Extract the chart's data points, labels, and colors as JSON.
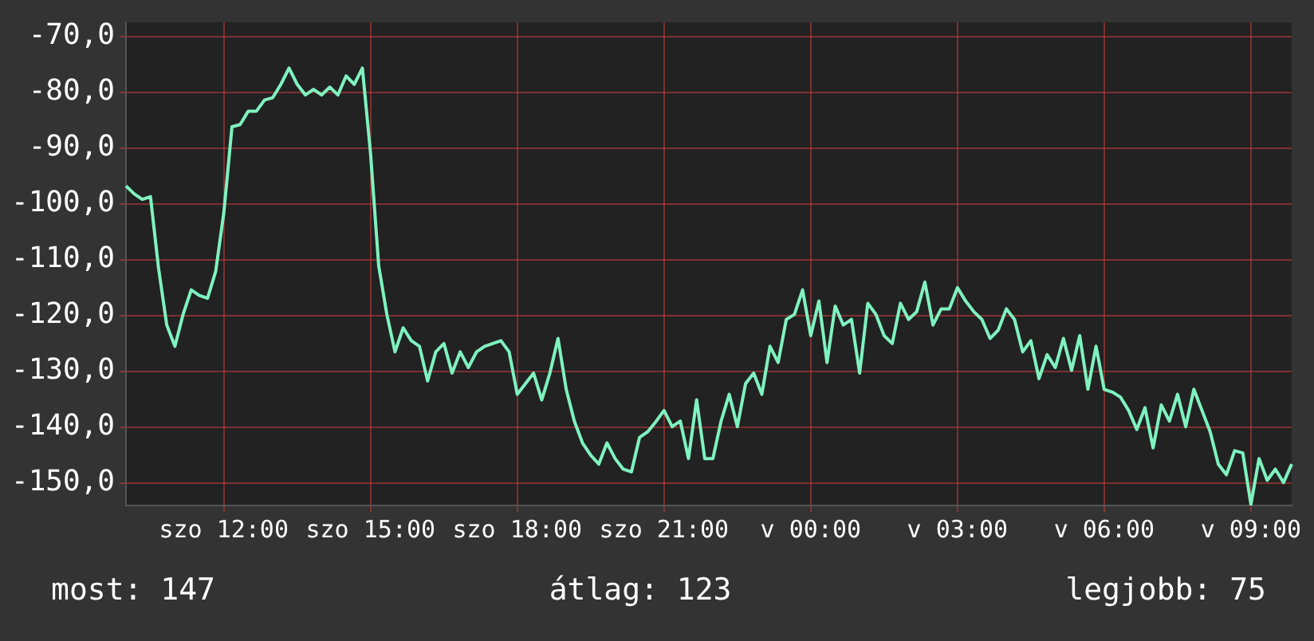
{
  "chart_data": {
    "type": "line",
    "categories": [
      null,
      null,
      null,
      null,
      null,
      null,
      null,
      null,
      null,
      null,
      null,
      null,
      "szo 12:00",
      null,
      null,
      null,
      null,
      null,
      null,
      null,
      null,
      null,
      null,
      null,
      null,
      null,
      null,
      null,
      null,
      null,
      "szo 15:00",
      null,
      null,
      null,
      null,
      null,
      null,
      null,
      null,
      null,
      null,
      null,
      null,
      null,
      null,
      null,
      null,
      null,
      "szo 18:00",
      null,
      null,
      null,
      null,
      null,
      null,
      null,
      null,
      null,
      null,
      null,
      null,
      null,
      null,
      null,
      null,
      null,
      "szo 21:00",
      null,
      null,
      null,
      null,
      null,
      null,
      null,
      null,
      null,
      null,
      null,
      null,
      null,
      null,
      null,
      null,
      null,
      "v 00:00",
      null,
      null,
      null,
      null,
      null,
      null,
      null,
      null,
      null,
      null,
      null,
      null,
      null,
      null,
      null,
      null,
      null,
      "v 03:00",
      null,
      null,
      null,
      null,
      null,
      null,
      null,
      null,
      null,
      null,
      null,
      null,
      null,
      null,
      null,
      null,
      null,
      "v 06:00",
      null,
      null,
      null,
      null,
      null,
      null,
      null,
      null,
      null,
      null,
      null,
      null,
      null,
      null,
      null,
      null,
      null,
      "v 09:00",
      null,
      null,
      null,
      null,
      null
    ],
    "series": [
      {
        "color": "#7ff2bf",
        "values": [
          -96.8,
          -98.2,
          -99.2,
          -98.7,
          -111.6,
          -121.7,
          -125.5,
          -119.8,
          -115.4,
          -116.4,
          -116.9,
          -112.1,
          -101.6,
          -86.2,
          -85.8,
          -83.4,
          -83.4,
          -81.4,
          -81.0,
          -78.6,
          -75.7,
          -78.6,
          -80.5,
          -79.5,
          -80.5,
          -79.1,
          -80.5,
          -77.1,
          -78.6,
          -75.7,
          -91.0,
          -111.1,
          -119.8,
          -126.5,
          -122.2,
          -124.5,
          -125.5,
          -131.7,
          -126.5,
          -125.0,
          -130.3,
          -126.5,
          -129.3,
          -126.5,
          -125.5,
          -125.0,
          -124.5,
          -126.5,
          -134.1,
          -132.2,
          -130.3,
          -135.1,
          -130.3,
          -124.1,
          -133.2,
          -138.9,
          -142.8,
          -145.0,
          -146.6,
          -142.8,
          -145.6,
          -147.5,
          -148.0,
          -141.8,
          -140.8,
          -139.0,
          -137.0,
          -139.9,
          -138.9,
          -145.6,
          -135.1,
          -145.6,
          -145.6,
          -138.9,
          -134.1,
          -139.9,
          -132.2,
          -130.3,
          -134.1,
          -125.5,
          -128.4,
          -120.7,
          -119.8,
          -115.4,
          -123.6,
          -117.4,
          -128.4,
          -118.3,
          -121.7,
          -120.7,
          -130.3,
          -117.8,
          -119.8,
          -123.6,
          -125.0,
          -117.8,
          -120.7,
          -119.3,
          -114.0,
          -121.7,
          -118.8,
          -118.8,
          -115.0,
          -117.4,
          -119.3,
          -120.7,
          -124.1,
          -122.6,
          -118.8,
          -120.7,
          -126.5,
          -124.5,
          -131.3,
          -127.0,
          -129.3,
          -124.1,
          -129.8,
          -123.6,
          -133.2,
          -125.5,
          -133.2,
          -133.7,
          -134.6,
          -137.0,
          -140.4,
          -136.5,
          -143.7,
          -136.0,
          -138.9,
          -134.1,
          -139.9,
          -133.2,
          -137.0,
          -140.8,
          -146.6,
          -148.5,
          -144.2,
          -144.6,
          -153.8,
          -145.6,
          -149.5,
          -147.5,
          -149.9,
          -146.6
        ]
      }
    ],
    "ylim": [
      -154,
      -67.5
    ],
    "yticks": [
      {
        "value": -150,
        "label": "-150,0"
      },
      {
        "value": -140,
        "label": "-140,0"
      },
      {
        "value": -130,
        "label": "-130,0"
      },
      {
        "value": -120,
        "label": "-120,0"
      },
      {
        "value": -110,
        "label": "-110,0"
      },
      {
        "value": -100,
        "label": "-100,0"
      },
      {
        "value": -90,
        "label": "-90,0"
      },
      {
        "value": -80,
        "label": "-80,0"
      },
      {
        "value": -70,
        "label": "-70,0"
      }
    ],
    "grid": true,
    "legend": false,
    "marker": "none",
    "line_style": "solid",
    "annotations": [
      "most: 147",
      "átlag: 123",
      "legjobb: 75"
    ]
  }
}
